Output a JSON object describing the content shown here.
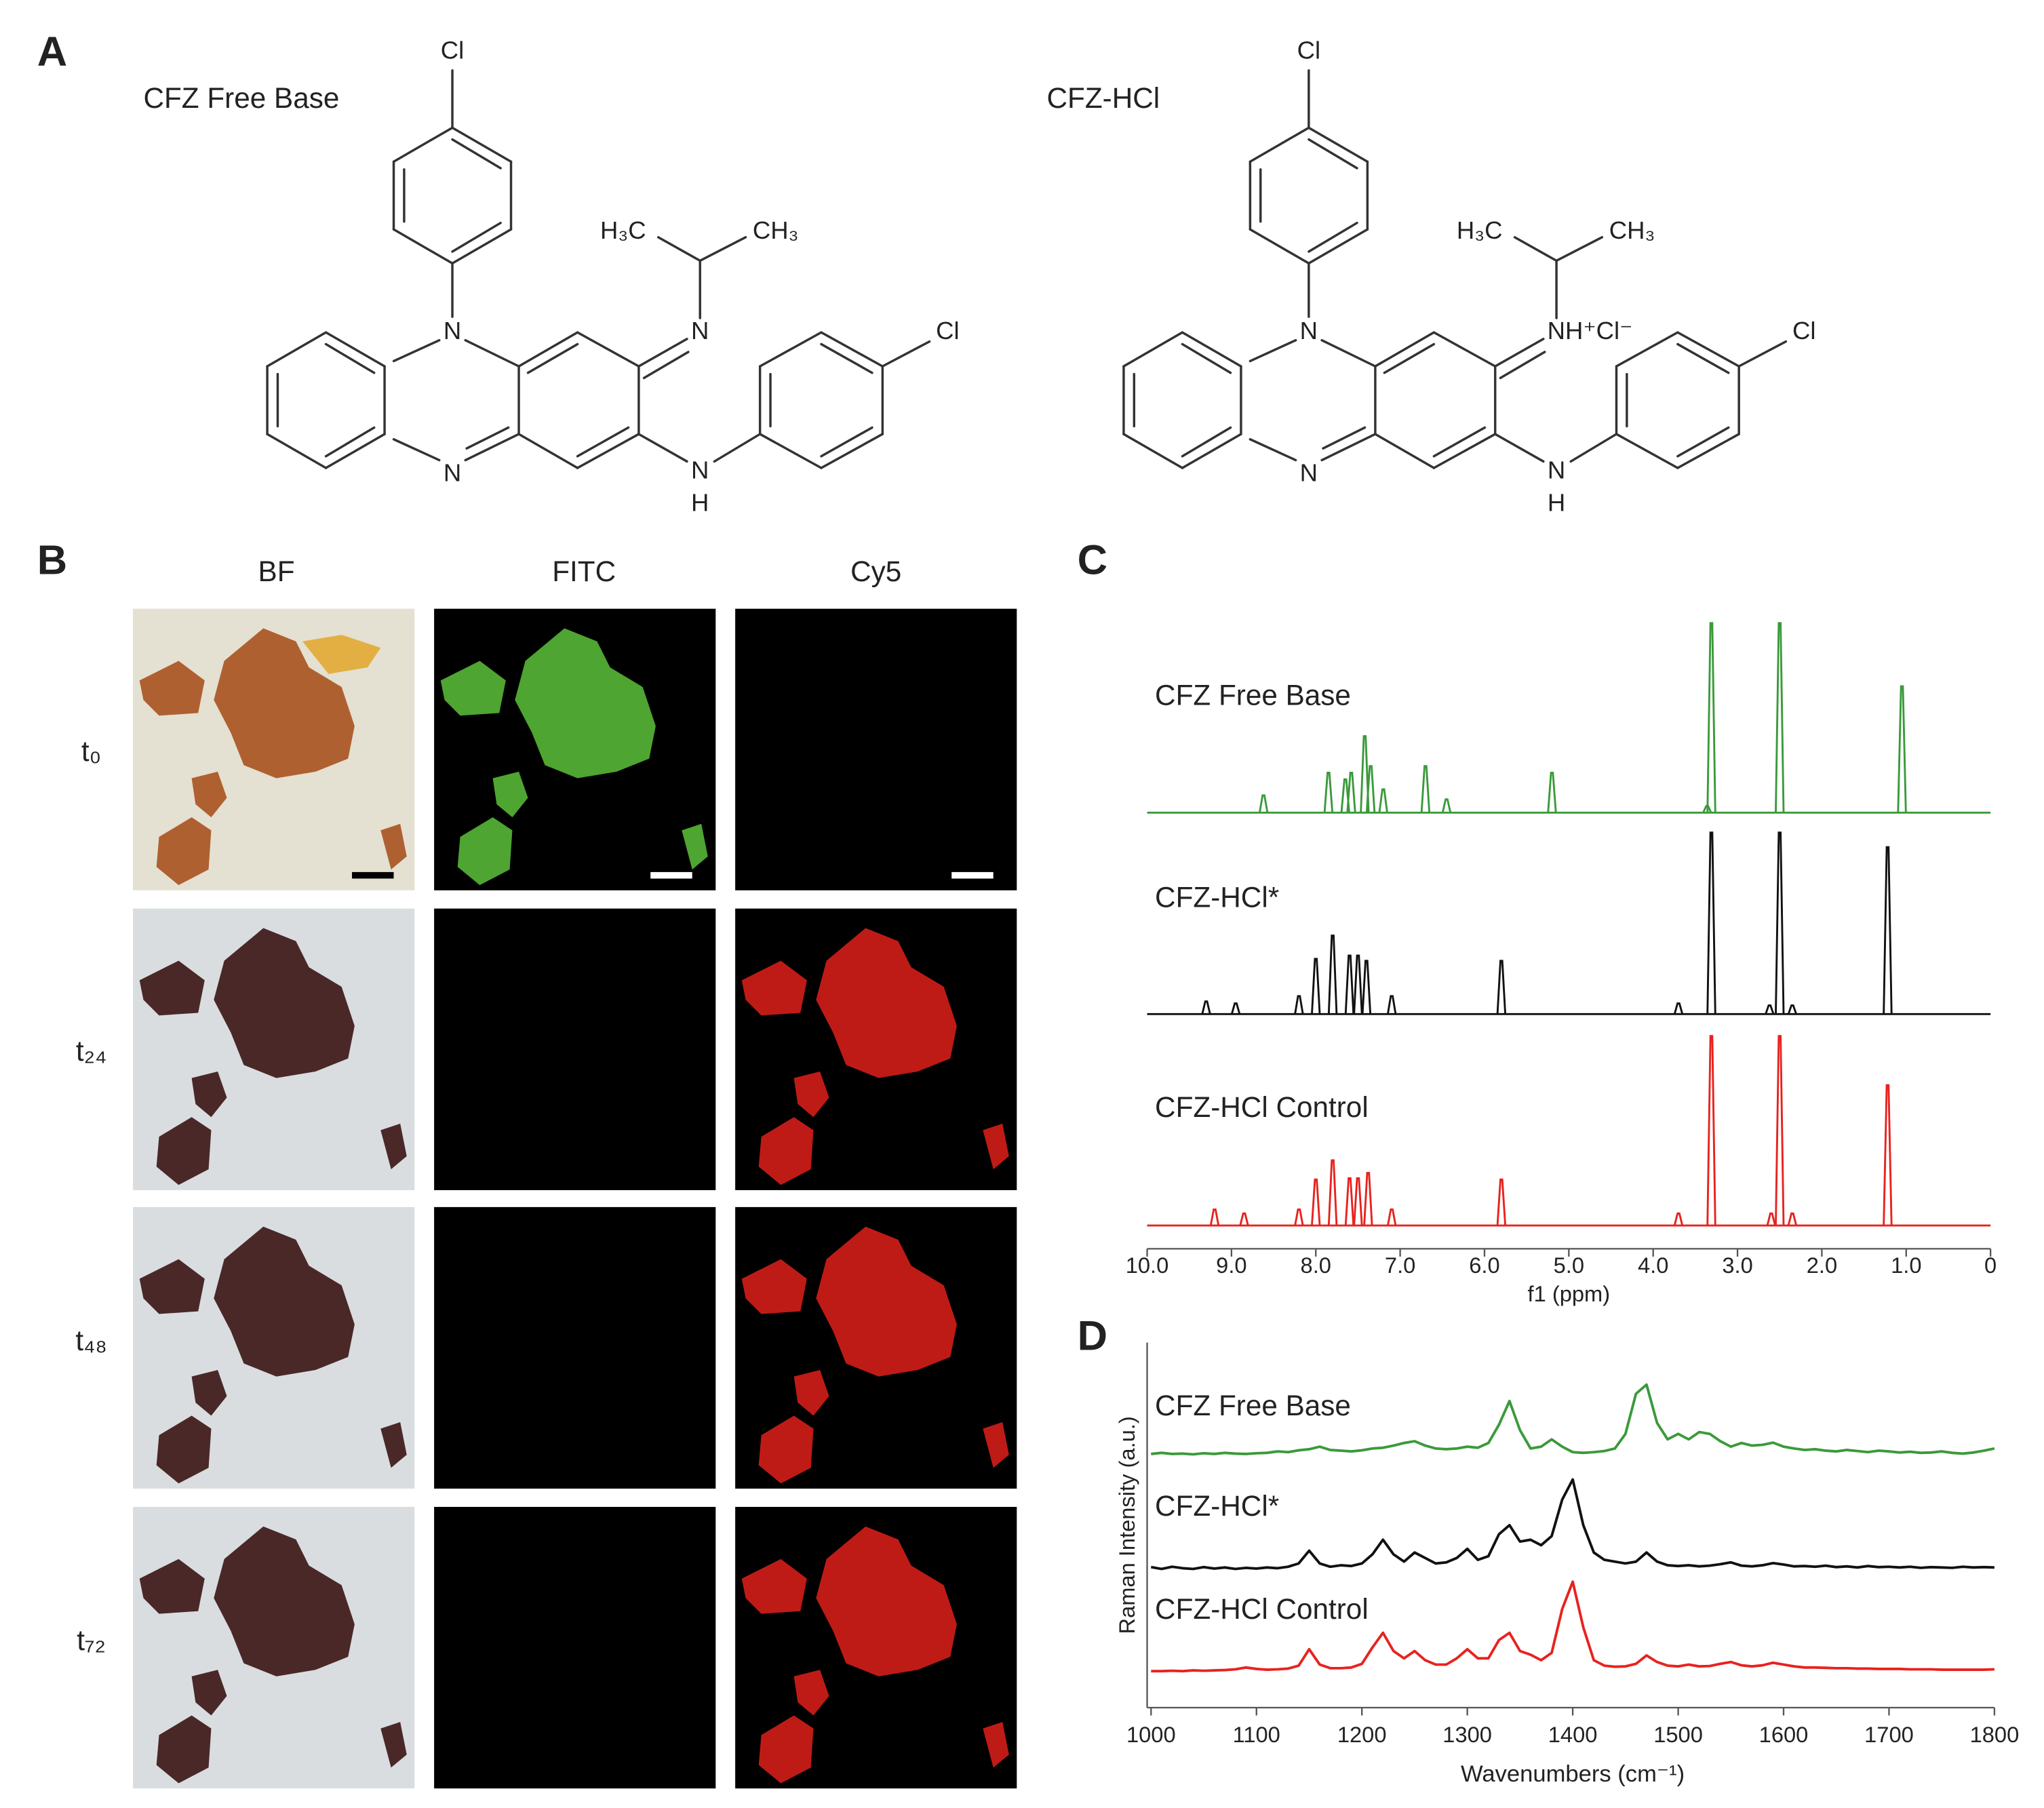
{
  "figure": {
    "panel_a": {
      "label": "A",
      "structures": [
        {
          "name": "CFZ Free Base",
          "atoms": [
            "Cl",
            "H₃C",
            "CH₃",
            "N",
            "N",
            "N",
            "N",
            "H",
            "Cl"
          ]
        },
        {
          "name": "CFZ-HCl",
          "atoms": [
            "Cl",
            "H₃C",
            "CH₃",
            "N",
            "N",
            "NH⁺Cl⁻",
            "N",
            "H",
            "Cl"
          ]
        }
      ]
    },
    "panel_b": {
      "label": "B",
      "columns": [
        "BF",
        "FITC",
        "Cy5"
      ],
      "rows": [
        "t₀",
        "t₂₄",
        "t₄₈",
        "t₇₂"
      ]
    }
  },
  "chart_data": [
    {
      "type": "peaks",
      "label": "C",
      "xlabel": "f1 (ppm)",
      "xlim": [
        10,
        0
      ],
      "xticks": [
        {
          "value": 10,
          "label": "10.0"
        },
        {
          "value": 9,
          "label": "9.0"
        },
        {
          "value": 8,
          "label": "8.0"
        },
        {
          "value": 7,
          "label": "7.0"
        },
        {
          "value": 6,
          "label": "6.0"
        },
        {
          "value": 5,
          "label": "5.0"
        },
        {
          "value": 4,
          "label": "4.0"
        },
        {
          "value": 3,
          "label": "3.0"
        },
        {
          "value": 2,
          "label": "2.0"
        },
        {
          "value": 1,
          "label": "1.0"
        },
        0
      ],
      "ylim": [
        0,
        100
      ],
      "series": [
        {
          "name": "CFZ Free Base",
          "color": "#3a9a3a",
          "baseline": 66,
          "x": [
            8.62,
            7.85,
            7.65,
            7.58,
            7.42,
            7.35,
            7.2,
            6.7,
            6.45,
            5.2,
            3.36,
            3.31,
            2.5,
            1.05
          ],
          "values": [
            68.6,
            72,
            71,
            72,
            77.5,
            73,
            69.5,
            73,
            68,
            72,
            67,
            94.5,
            94.5,
            85
          ]
        },
        {
          "name": "CFZ-HCl*",
          "color": "#111111",
          "baseline": 35.7,
          "x": [
            9.3,
            8.95,
            8.2,
            8.0,
            7.8,
            7.6,
            7.5,
            7.4,
            7.1,
            5.8,
            3.7,
            3.31,
            2.62,
            2.5,
            2.35,
            1.22
          ],
          "values": [
            37.6,
            37.3,
            38.4,
            44,
            47.5,
            44.5,
            44.5,
            43.7,
            38.4,
            43.7,
            37.3,
            63,
            37,
            63,
            37,
            60.8
          ]
        },
        {
          "name": "CFZ-HCl Control",
          "color": "#e8221e",
          "baseline": 3.9,
          "x": [
            9.2,
            8.85,
            8.2,
            8.0,
            7.8,
            7.6,
            7.5,
            7.38,
            7.1,
            5.8,
            3.7,
            3.31,
            2.6,
            2.5,
            2.35,
            1.22
          ],
          "values": [
            6.3,
            5.7,
            6.3,
            10.8,
            13.7,
            11,
            11,
            11.8,
            6.3,
            10.8,
            5.7,
            32.4,
            5.7,
            32.4,
            5.7,
            25
          ]
        }
      ]
    },
    {
      "type": "line",
      "label": "D",
      "xlabel": "Wavenumbers (cm⁻¹)",
      "ylabel": "Raman Intensity (a.u.)",
      "xlim": [
        1000,
        1800
      ],
      "xticks": [
        1000,
        1100,
        1200,
        1300,
        1400,
        1500,
        1600,
        1700,
        1800
      ],
      "ylim": [
        0,
        100
      ],
      "x": [
        1000,
        1010,
        1020,
        1030,
        1040,
        1050,
        1060,
        1070,
        1080,
        1090,
        1100,
        1110,
        1120,
        1130,
        1140,
        1150,
        1160,
        1170,
        1180,
        1190,
        1200,
        1210,
        1220,
        1230,
        1240,
        1250,
        1260,
        1270,
        1280,
        1290,
        1300,
        1310,
        1320,
        1330,
        1340,
        1350,
        1360,
        1370,
        1380,
        1390,
        1400,
        1410,
        1420,
        1430,
        1440,
        1450,
        1460,
        1470,
        1480,
        1490,
        1500,
        1510,
        1520,
        1530,
        1540,
        1550,
        1560,
        1570,
        1580,
        1590,
        1600,
        1610,
        1620,
        1630,
        1640,
        1650,
        1660,
        1670,
        1680,
        1690,
        1700,
        1710,
        1720,
        1730,
        1740,
        1750,
        1760,
        1770,
        1780,
        1790,
        1800
      ],
      "series": [
        {
          "name": "CFZ Free Base",
          "color": "#3a9a3a",
          "values": [
            69.5,
            69.8,
            69.5,
            69.6,
            69.4,
            69.7,
            69.5,
            69.8,
            69.6,
            69.5,
            69.7,
            69.8,
            70.2,
            70.0,
            70.5,
            70.8,
            71.5,
            70.6,
            70.4,
            70.2,
            70.5,
            71.0,
            71.2,
            71.8,
            72.5,
            73.0,
            71.8,
            71.0,
            70.8,
            71.0,
            71.5,
            71.2,
            72.5,
            77.5,
            84.0,
            76.0,
            71.0,
            71.5,
            73.5,
            71.5,
            70.0,
            69.8,
            70.0,
            70.3,
            71.0,
            75.0,
            86.0,
            88.5,
            78.0,
            73.5,
            75.0,
            73.5,
            75.5,
            75.0,
            73.0,
            71.5,
            72.5,
            71.8,
            72.0,
            72.6,
            71.5,
            71.0,
            70.6,
            70.8,
            70.4,
            70.2,
            70.6,
            70.3,
            70.0,
            70.4,
            70.2,
            69.9,
            70.1,
            69.8,
            69.9,
            70.2,
            69.8,
            69.6,
            69.9,
            70.4,
            71.0
          ]
        },
        {
          "name": "CFZ-HCl*",
          "color": "#111111",
          "values": [
            38.5,
            38.0,
            38.6,
            38.2,
            38.0,
            38.5,
            38.1,
            38.4,
            38.0,
            38.3,
            38.1,
            38.4,
            38.2,
            38.6,
            39.5,
            43.0,
            39.5,
            38.6,
            39.0,
            38.8,
            39.5,
            42.0,
            46.0,
            42.0,
            40.0,
            42.5,
            41.0,
            39.5,
            39.8,
            41.0,
            43.5,
            40.5,
            41.5,
            47.5,
            50.0,
            45.5,
            46.0,
            44.5,
            47.0,
            57.0,
            62.5,
            50.0,
            42.5,
            40.5,
            40.0,
            39.5,
            40.0,
            42.5,
            40.0,
            39.0,
            38.8,
            39.0,
            38.7,
            38.9,
            39.3,
            39.8,
            38.9,
            38.7,
            39.0,
            39.6,
            39.2,
            38.7,
            38.8,
            38.6,
            38.9,
            38.5,
            38.7,
            38.4,
            38.8,
            38.5,
            38.6,
            38.4,
            38.6,
            38.3,
            38.5,
            38.4,
            38.3,
            38.6,
            38.4,
            38.5,
            38.4
          ]
        },
        {
          "name": "CFZ-HCl Control",
          "color": "#e8221e",
          "values": [
            10.0,
            10.0,
            10.1,
            10.0,
            10.2,
            10.1,
            10.2,
            10.3,
            10.5,
            11.0,
            10.6,
            10.4,
            10.5,
            10.7,
            11.5,
            16.0,
            11.8,
            10.8,
            10.8,
            11.0,
            12.0,
            16.5,
            20.5,
            15.5,
            13.5,
            15.5,
            13.0,
            11.8,
            11.8,
            13.5,
            16.0,
            13.5,
            13.5,
            18.5,
            20.5,
            15.5,
            14.5,
            13.0,
            15.0,
            27.0,
            34.5,
            22.0,
            13.0,
            11.5,
            11.2,
            11.3,
            12.0,
            14.3,
            12.5,
            11.5,
            11.3,
            11.8,
            11.3,
            11.4,
            12.0,
            12.5,
            11.6,
            11.3,
            11.6,
            12.3,
            11.8,
            11.3,
            11.0,
            11.0,
            10.9,
            10.8,
            10.8,
            10.7,
            10.7,
            10.6,
            10.6,
            10.6,
            10.5,
            10.5,
            10.5,
            10.4,
            10.4,
            10.4,
            10.4,
            10.4,
            10.5
          ]
        }
      ]
    }
  ]
}
